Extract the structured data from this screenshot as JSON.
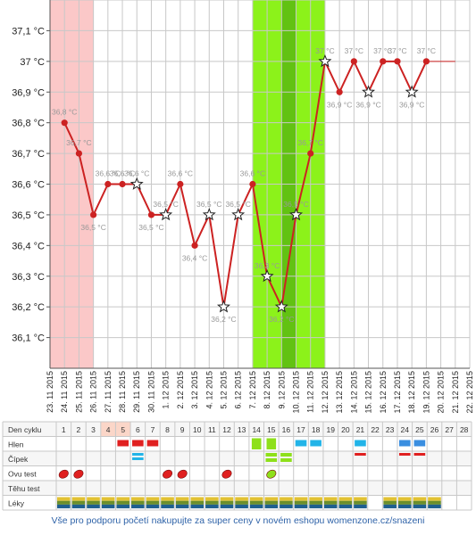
{
  "chart_data": {
    "type": "line",
    "ylim": [
      36.0,
      37.2
    ],
    "y_ticks": [
      "36,1 °C",
      "36,2 °C",
      "36,3 °C",
      "36,4 °C",
      "36,5 °C",
      "36,6 °C",
      "36,7 °C",
      "36,8 °C",
      "36,9 °C",
      "37 °C",
      "37,1 °C"
    ],
    "y_tick_values": [
      36.1,
      36.2,
      36.3,
      36.4,
      36.5,
      36.6,
      36.7,
      36.8,
      36.9,
      37.0,
      37.1
    ],
    "x_dates": [
      "23. 11 2015",
      "24. 11 2015",
      "25. 11 2015",
      "26. 11 2015",
      "27. 11 2015",
      "28. 11 2015",
      "29. 11 2015",
      "30. 11 2015",
      "1. 12 2015",
      "2. 12 2015",
      "3. 12 2015",
      "4. 12 2015",
      "5. 12 2015",
      "6. 12 2015",
      "7. 12 2015",
      "8. 12 2015",
      "9. 12 2015",
      "10. 12 2015",
      "11. 12 2015",
      "12. 12 2015",
      "13. 12 2015",
      "14. 12 2015",
      "15. 12 2015",
      "16. 12 2015",
      "17. 12 2015",
      "18. 12 2015",
      "19. 12 2015",
      "20. 12 2015",
      "21. 12 2015",
      "22. 12 2015"
    ],
    "grid": true,
    "series": [
      {
        "color": "#cc2222",
        "points": [
          {
            "x": "24. 11 2015",
            "y": 36.8,
            "label": "36,8 °C",
            "marker": "dot"
          },
          {
            "x": "25. 11 2015",
            "y": 36.7,
            "label": "36,7 °C",
            "marker": "dot"
          },
          {
            "x": "26. 11 2015",
            "y": 36.5,
            "label": "36,5 °C",
            "marker": "dot"
          },
          {
            "x": "27. 11 2015",
            "y": 36.6,
            "label": "36,6 °C",
            "marker": "dot"
          },
          {
            "x": "28. 11 2015",
            "y": 36.6,
            "label": "36,6 °C",
            "marker": "dot"
          },
          {
            "x": "29. 11 2015",
            "y": 36.6,
            "label": "36,6 °C",
            "marker": "star"
          },
          {
            "x": "30. 11 2015",
            "y": 36.5,
            "label": "36,5 °C",
            "marker": "dot"
          },
          {
            "x": "1. 12 2015",
            "y": 36.5,
            "label": "36,5 °C",
            "marker": "star"
          },
          {
            "x": "2. 12 2015",
            "y": 36.6,
            "label": "36,6 °C",
            "marker": "dot"
          },
          {
            "x": "3. 12 2015",
            "y": 36.4,
            "label": "36,4 °C",
            "marker": "dot"
          },
          {
            "x": "4. 12 2015",
            "y": 36.5,
            "label": "36,5 °C",
            "marker": "star"
          },
          {
            "x": "5. 12 2015",
            "y": 36.2,
            "label": "36,2 °C",
            "marker": "star"
          },
          {
            "x": "6. 12 2015",
            "y": 36.5,
            "label": "36,5 °C",
            "marker": "star"
          },
          {
            "x": "7. 12 2015",
            "y": 36.6,
            "label": "36,6 °C",
            "marker": "dot"
          },
          {
            "x": "8. 12 2015",
            "y": 36.3,
            "label": "36,3 °C",
            "marker": "star"
          },
          {
            "x": "9. 12 2015",
            "y": 36.2,
            "label": "36,2 °C",
            "marker": "star"
          },
          {
            "x": "10. 12 2015",
            "y": 36.5,
            "label": "36,5 °C",
            "marker": "star"
          },
          {
            "x": "11. 12 2015",
            "y": 36.7,
            "label": "36,7 °C",
            "marker": "dot"
          },
          {
            "x": "12. 12 2015",
            "y": 37.0,
            "label": "37 °C",
            "marker": "star"
          },
          {
            "x": "13. 12 2015",
            "y": 36.9,
            "label": "36,9 °C",
            "marker": "dot"
          },
          {
            "x": "14. 12 2015",
            "y": 37.0,
            "label": "37 °C",
            "marker": "dot"
          },
          {
            "x": "15. 12 2015",
            "y": 36.9,
            "label": "36,9 °C",
            "marker": "star"
          },
          {
            "x": "16. 12 2015",
            "y": 37.0,
            "label": "37 °C",
            "marker": "dot"
          },
          {
            "x": "17. 12 2015",
            "y": 37.0,
            "label": "37 °C",
            "marker": "dot"
          },
          {
            "x": "18. 12 2015",
            "y": 36.9,
            "label": "36,9 °C",
            "marker": "star"
          },
          {
            "x": "19. 12 2015",
            "y": 37.0,
            "label": "37 °C",
            "marker": "dot"
          }
        ],
        "tail_to": "21. 12 2015"
      }
    ],
    "bands": [
      {
        "from": "23. 11 2015",
        "to": "26. 11 2015",
        "color": "#fbc8c8"
      },
      {
        "from": "7. 12 2015",
        "to": "12. 12 2015",
        "color": "#8cf21a"
      },
      {
        "from": "9. 12 2015",
        "to": "10. 12 2015",
        "color": "#62c212"
      }
    ]
  },
  "table": {
    "row_labels": [
      "Den cyklu",
      "Hlen",
      "Čípek",
      "Ovu test",
      "Těhu test",
      "Léky"
    ],
    "days": [
      "1",
      "2",
      "3",
      "4",
      "5",
      "6",
      "7",
      "8",
      "9",
      "10",
      "11",
      "12",
      "13",
      "14",
      "15",
      "16",
      "17",
      "18",
      "19",
      "20",
      "21",
      "22",
      "23",
      "24",
      "25",
      "26",
      "27",
      "28"
    ],
    "highlight_days": [
      4,
      5
    ],
    "hlen": [
      {
        "day": 5,
        "color": "#e02020"
      },
      {
        "day": 6,
        "color": "#e02020"
      },
      {
        "day": 7,
        "color": "#e02020"
      },
      {
        "day": 14,
        "color": "#8ee01a"
      },
      {
        "day": 15,
        "color": "#8ee01a"
      },
      {
        "day": 17,
        "color": "#22b4e8"
      },
      {
        "day": 18,
        "color": "#22b4e8"
      },
      {
        "day": 21,
        "color": "#22b4e8"
      },
      {
        "day": 24,
        "color": "#3a8ee0"
      },
      {
        "day": 25,
        "color": "#3a8ee0"
      }
    ],
    "cipek": [
      {
        "day": 6,
        "kind": "blue"
      },
      {
        "day": 15,
        "kind": "green"
      },
      {
        "day": 16,
        "kind": "green"
      },
      {
        "day": 21,
        "kind": "red"
      },
      {
        "day": 24,
        "kind": "red"
      },
      {
        "day": 25,
        "kind": "red"
      }
    ],
    "ovu": [
      {
        "day": 1,
        "kind": "red"
      },
      {
        "day": 2,
        "kind": "red"
      },
      {
        "day": 8,
        "kind": "red"
      },
      {
        "day": 9,
        "kind": "red"
      },
      {
        "day": 12,
        "kind": "red"
      },
      {
        "day": 15,
        "kind": "green"
      }
    ],
    "leky_days": [
      1,
      2,
      3,
      4,
      5,
      6,
      7,
      8,
      9,
      10,
      11,
      12,
      13,
      14,
      15,
      16,
      17,
      18,
      19,
      20,
      21,
      23,
      24,
      25,
      26
    ],
    "leky_colors": [
      "#e2c233",
      "#6b8f2d",
      "#1f5f8f"
    ]
  },
  "footer": "Vše pro podporu početí nakupujte za super ceny v novém eshopu womenzone.cz/snazeni"
}
